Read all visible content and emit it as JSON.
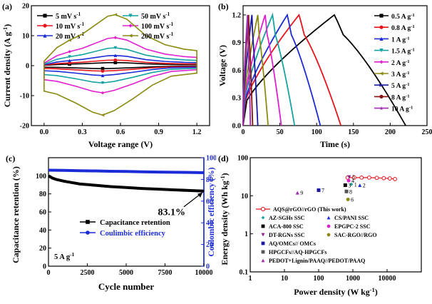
{
  "chart_data": [
    {
      "type": "line",
      "panel_label": "(a)",
      "title": "",
      "xlabel": "Voltage range (V)",
      "ylabel": "Current density (A g",
      "ylabel_sup": "-1",
      "ylabel_close": ")",
      "xlim": [
        -0.1,
        1.3
      ],
      "ylim": [
        -20,
        20
      ],
      "xticks": [
        "0.0",
        "0.3",
        "0.6",
        "0.9",
        "1.2"
      ],
      "xtick_values": [
        0.0,
        0.3,
        0.6,
        0.9,
        1.2
      ],
      "yticks": [
        "-20",
        "-10",
        "0",
        "10",
        "20"
      ],
      "ytick_values": [
        -20,
        -10,
        0,
        10,
        20
      ],
      "legend_location": "top",
      "series": [
        {
          "name": "5 mV s",
          "unit_sup": "-1",
          "color": "#000000",
          "marker": "square",
          "scale": 0.06,
          "offset": 0.0
        },
        {
          "name": "10 mV s",
          "unit_sup": "-1",
          "color": "#e8141b",
          "marker": "circle",
          "scale": 0.11,
          "offset": 0.0
        },
        {
          "name": "20 mV s",
          "unit_sup": "-1",
          "color": "#1b2bd6",
          "marker": "triangle",
          "scale": 0.2,
          "offset": 0.0
        },
        {
          "name": "50 mV s",
          "unit_sup": "-1",
          "color": "#15a3a3",
          "marker": "triangle-down",
          "scale": 0.35,
          "offset": 0.0
        },
        {
          "name": "100 mV s",
          "unit_sup": "-1",
          "color": "#e020d0",
          "marker": "diamond",
          "scale": 0.55,
          "offset": 0.0
        },
        {
          "name": "200 mV s",
          "unit_sup": "-1",
          "color": "#8b8b12",
          "marker": "triangle-left",
          "scale": 1.0,
          "offset": 0.0
        }
      ],
      "reference_curve": {
        "upper": [
          [
            0.0,
            1.5
          ],
          [
            0.1,
            6.0
          ],
          [
            0.2,
            8.5
          ],
          [
            0.3,
            10.5
          ],
          [
            0.4,
            13.5
          ],
          [
            0.5,
            16.5
          ],
          [
            0.56,
            17.0
          ],
          [
            0.65,
            15.5
          ],
          [
            0.8,
            10.0
          ],
          [
            0.95,
            7.0
          ],
          [
            1.1,
            5.5
          ],
          [
            1.2,
            5.0
          ],
          [
            1.2,
            1.5
          ]
        ],
        "lower": [
          [
            1.2,
            1.5
          ],
          [
            1.2,
            -2.5
          ],
          [
            1.0,
            -3.5
          ],
          [
            0.85,
            -6.5
          ],
          [
            0.7,
            -11.0
          ],
          [
            0.55,
            -15.0
          ],
          [
            0.46,
            -16.5
          ],
          [
            0.38,
            -15.5
          ],
          [
            0.25,
            -12.5
          ],
          [
            0.1,
            -9.5
          ],
          [
            0.0,
            -8.5
          ],
          [
            0.0,
            1.5
          ]
        ]
      }
    },
    {
      "type": "line",
      "panel_label": "(b)",
      "title": "",
      "xlabel": "Time (s)",
      "ylabel": "Voltage (V)",
      "xlim": [
        0,
        250
      ],
      "ylim": [
        0,
        1.3
      ],
      "xticks": [
        "0",
        "50",
        "100",
        "150",
        "200",
        "250"
      ],
      "xtick_values": [
        0,
        50,
        100,
        150,
        200,
        250
      ],
      "yticks": [
        "0.0",
        "0.3",
        "0.6",
        "0.9",
        "1.2"
      ],
      "ytick_values": [
        0.0,
        0.3,
        0.6,
        0.9,
        1.2
      ],
      "legend_location": "right",
      "series": [
        {
          "name": "0.5 A g",
          "unit_sup": "-1",
          "color": "#000000",
          "marker": "square",
          "charge_time": 124,
          "total_time": 221
        },
        {
          "name": "0.8 A g",
          "unit_sup": "-1",
          "color": "#e8141b",
          "marker": "circle",
          "charge_time": 76,
          "total_time": 133
        },
        {
          "name": "1 A g",
          "unit_sup": "-1",
          "color": "#1b2bd6",
          "marker": "triangle",
          "charge_time": 60,
          "total_time": 105
        },
        {
          "name": "1.5 A g",
          "unit_sup": "-1",
          "color": "#15a3a3",
          "marker": "triangle-down",
          "charge_time": 40,
          "total_time": 70
        },
        {
          "name": "2 A g",
          "unit_sup": "-1",
          "color": "#e020d0",
          "marker": "diamond",
          "charge_time": 30,
          "total_time": 52
        },
        {
          "name": "3 A g",
          "unit_sup": "-1",
          "color": "#8b8b12",
          "marker": "triangle-left",
          "charge_time": 20,
          "total_time": 34
        },
        {
          "name": "5 A g",
          "unit_sup": "-1",
          "color": "#1a1aa0",
          "marker": "triangle-right",
          "charge_time": 12,
          "total_time": 20
        },
        {
          "name": "8 A g",
          "unit_sup": "-1",
          "color": "#8a1010",
          "marker": "hexagon",
          "charge_time": 7.5,
          "total_time": 13
        },
        {
          "name": "10 A g",
          "unit_sup": "-1",
          "color": "#9b2daa",
          "marker": "star",
          "charge_time": 6,
          "total_time": 10
        }
      ]
    },
    {
      "type": "line",
      "panel_label": "(c)",
      "title": "",
      "xlabel": "Cycle number",
      "ylabel": "Capacitance retention (%)",
      "ylabel_right": "Coulombic efficiency (%)",
      "xlim": [
        0,
        10000
      ],
      "ylim": [
        0,
        120
      ],
      "ylim_right": [
        0,
        100
      ],
      "xticks": [
        "0",
        "2500",
        "5000",
        "7500",
        "10000"
      ],
      "xtick_values": [
        0,
        2500,
        5000,
        7500,
        10000
      ],
      "yticks": [
        "0",
        "20",
        "40",
        "60",
        "80",
        "100"
      ],
      "ytick_values": [
        0,
        20,
        40,
        60,
        80,
        100
      ],
      "yticks_right": [
        "0",
        "20",
        "40",
        "60",
        "80",
        "100"
      ],
      "ytick_values_right": [
        0,
        20,
        40,
        60,
        80,
        100
      ],
      "annotation": "83.1%",
      "condition_label": "5 A g",
      "condition_sup": "-1",
      "legend_location": "center",
      "series": [
        {
          "name": "Capacitance retention",
          "color": "#000000",
          "marker": "square",
          "axis": "left",
          "x": [
            0,
            250,
            500,
            1000,
            1500,
            2000,
            3000,
            4000,
            5000,
            6000,
            7000,
            8000,
            9000,
            10000
          ],
          "y": [
            100,
            97.5,
            96,
            94,
            92.5,
            91,
            89.5,
            88,
            87,
            86,
            85.3,
            84.5,
            83.8,
            83.1
          ]
        },
        {
          "name": "Coulimbic efficiency",
          "color": "#1b2bd6",
          "marker": "circle",
          "axis": "right",
          "x": [
            0,
            1000,
            2000,
            3000,
            4000,
            5000,
            6000,
            7000,
            8000,
            9000,
            10000
          ],
          "y": [
            88.5,
            88.3,
            88.0,
            87.8,
            87.5,
            87.3,
            87.0,
            86.8,
            86.6,
            86.4,
            86.2
          ]
        }
      ]
    },
    {
      "type": "scatter",
      "panel_label": "(d)",
      "title": "",
      "xlabel": "Power density (W kg",
      "xlabel_sup": "-1",
      "xlabel_close": ")",
      "ylabel": "Energy density (Wh kg",
      "ylabel_sup": "-1",
      "ylabel_close": ")",
      "xscale": "log",
      "yscale": "log",
      "xlim": [
        1,
        100000
      ],
      "ylim": [
        0.1,
        100
      ],
      "xticks": [
        "1",
        "10",
        "100",
        "1000",
        "10000"
      ],
      "xtick_values": [
        1,
        10,
        100,
        1000,
        10000
      ],
      "yticks": [
        "0.1",
        "1",
        "10",
        "100"
      ],
      "ytick_values": [
        0.1,
        1,
        10,
        100
      ],
      "legend_location": "bottom",
      "main_series": {
        "name": "AQS@rGO//rGO (This work)",
        "color": "#e8141b",
        "x": [
          700,
          1100,
          1800,
          3000,
          5000,
          8000,
          12000,
          17000
        ],
        "y": [
          30,
          30,
          30,
          30,
          29.5,
          29,
          28.5,
          27.5
        ]
      },
      "points": [
        {
          "id": "1",
          "name": "AZ-SGHs SSC",
          "color": "#15a3a3",
          "marker": "diamond",
          "x": 900,
          "y": 20
        },
        {
          "id": "2",
          "name": "CS/PANI SSC",
          "color": "#1b2bd6",
          "marker": "triangle",
          "x": 1600,
          "y": 19
        },
        {
          "id": "3",
          "name": "ACA-800 SSC",
          "color": "#000000",
          "marker": "square",
          "x": 600,
          "y": 19
        },
        {
          "id": "4",
          "name": "EPGPC-2 SSC",
          "color": "#e020d0",
          "marker": "circle",
          "x": 750,
          "y": 25
        },
        {
          "id": "5",
          "name": "DT-RGNs SSC",
          "color": "#8b1a8b",
          "marker": "triangle-down",
          "x": 780,
          "y": 31
        },
        {
          "id": "6",
          "name": "SAC-RGO//RGO",
          "color": "#8b8b12",
          "marker": "circle",
          "x": 720,
          "y": 8
        },
        {
          "id": "7",
          "name": "AQ/OMCs// OMCs",
          "color": "#1a1aa0",
          "marker": "square",
          "x": 100,
          "y": 14
        },
        {
          "id": "8",
          "name": "HPGCFs//AQ-HPGCFs",
          "color": "#555555",
          "marker": "square",
          "x": 650,
          "y": 13
        },
        {
          "id": "9",
          "name": "PEDOT+Lignin/PAAQ//PEDOT/PAAQ",
          "color": "#9b2daa",
          "marker": "triangle",
          "x": 24,
          "y": 12
        }
      ],
      "legend_items": [
        "AQS@rGO//rGO (This work)",
        "AZ-SGHs SSC",
        "CS/PANI SSC",
        "ACA-800 SSC",
        "EPGPC-2 SSC",
        "DT-RGNs SSC",
        "SAC-RGO//RGO",
        "AQ/OMCs// OMCs",
        "HPGCFs//AQ-HPGCFs",
        "PEDOT+Lignin/PAAQ//PEDOT/PAAQ"
      ]
    }
  ]
}
